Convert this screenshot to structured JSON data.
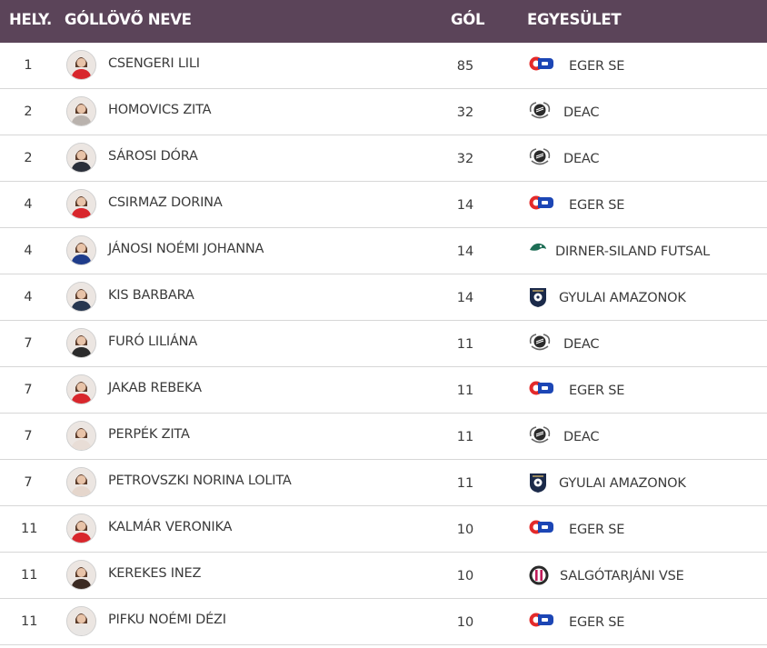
{
  "header": {
    "rank": "HELY.",
    "name": "GÓLLÖVŐ NEVE",
    "goals": "GÓL",
    "club": "EGYESÜLET"
  },
  "rows": [
    {
      "rank": "1",
      "name": "CSENGERI LILI",
      "goals": "85",
      "club": "EGER SE",
      "logo": "eger-se-logo",
      "shirt": "#d8262c"
    },
    {
      "rank": "2",
      "name": "HOMOVICS ZITA",
      "goals": "32",
      "club": "DEAC",
      "logo": "deac-logo",
      "shirt": "#b9b2ad"
    },
    {
      "rank": "2",
      "name": "SÁROSI DÓRA",
      "goals": "32",
      "club": "DEAC",
      "logo": "deac-logo",
      "shirt": "#2a2f3a"
    },
    {
      "rank": "4",
      "name": "CSIRMAZ DORINA",
      "goals": "14",
      "club": "EGER SE",
      "logo": "eger-se-logo",
      "shirt": "#d8262c"
    },
    {
      "rank": "4",
      "name": "JÁNOSI NOÉMI JOHANNA",
      "goals": "14",
      "club": "DIRNER-SILAND FUTSAL",
      "logo": "dirner-siland-logo",
      "shirt": "#1f3c8a"
    },
    {
      "rank": "4",
      "name": "KIS BARBARA",
      "goals": "14",
      "club": "GYULAI AMAZONOK",
      "logo": "gyulai-amazonok-logo",
      "shirt": "#27364f"
    },
    {
      "rank": "7",
      "name": "FURÓ LILIÁNA",
      "goals": "11",
      "club": "DEAC",
      "logo": "deac-logo",
      "shirt": "#2b2b2b"
    },
    {
      "rank": "7",
      "name": "JAKAB REBEKA",
      "goals": "11",
      "club": "EGER SE",
      "logo": "eger-se-logo",
      "shirt": "#d8262c"
    },
    {
      "rank": "7",
      "name": "PERPÉK ZITA",
      "goals": "11",
      "club": "DEAC",
      "logo": "deac-logo",
      "shirt": "#e8ddd6"
    },
    {
      "rank": "7",
      "name": "PETROVSZKI NORINA LOLITA",
      "goals": "11",
      "club": "GYULAI AMAZONOK",
      "logo": "gyulai-amazonok-logo",
      "shirt": "#e5d6cc"
    },
    {
      "rank": "11",
      "name": "KALMÁR VERONIKA",
      "goals": "10",
      "club": "EGER SE",
      "logo": "eger-se-logo",
      "shirt": "#d8262c"
    },
    {
      "rank": "11",
      "name": "KEREKES INEZ",
      "goals": "10",
      "club": "SALGÓTARJÁNI VSE",
      "logo": "salgotarjani-vse-logo",
      "shirt": "#3b2a22"
    },
    {
      "rank": "11",
      "name": "PIFKU NOÉMI DÉZI",
      "goals": "10",
      "club": "EGER SE",
      "logo": "eger-se-logo",
      "shirt": "#e9e6e4"
    }
  ],
  "colors": {
    "header_bg": "#5b4459",
    "header_text": "#ffffff",
    "row_border": "#d7d7d7",
    "text": "#3a3a3a"
  }
}
